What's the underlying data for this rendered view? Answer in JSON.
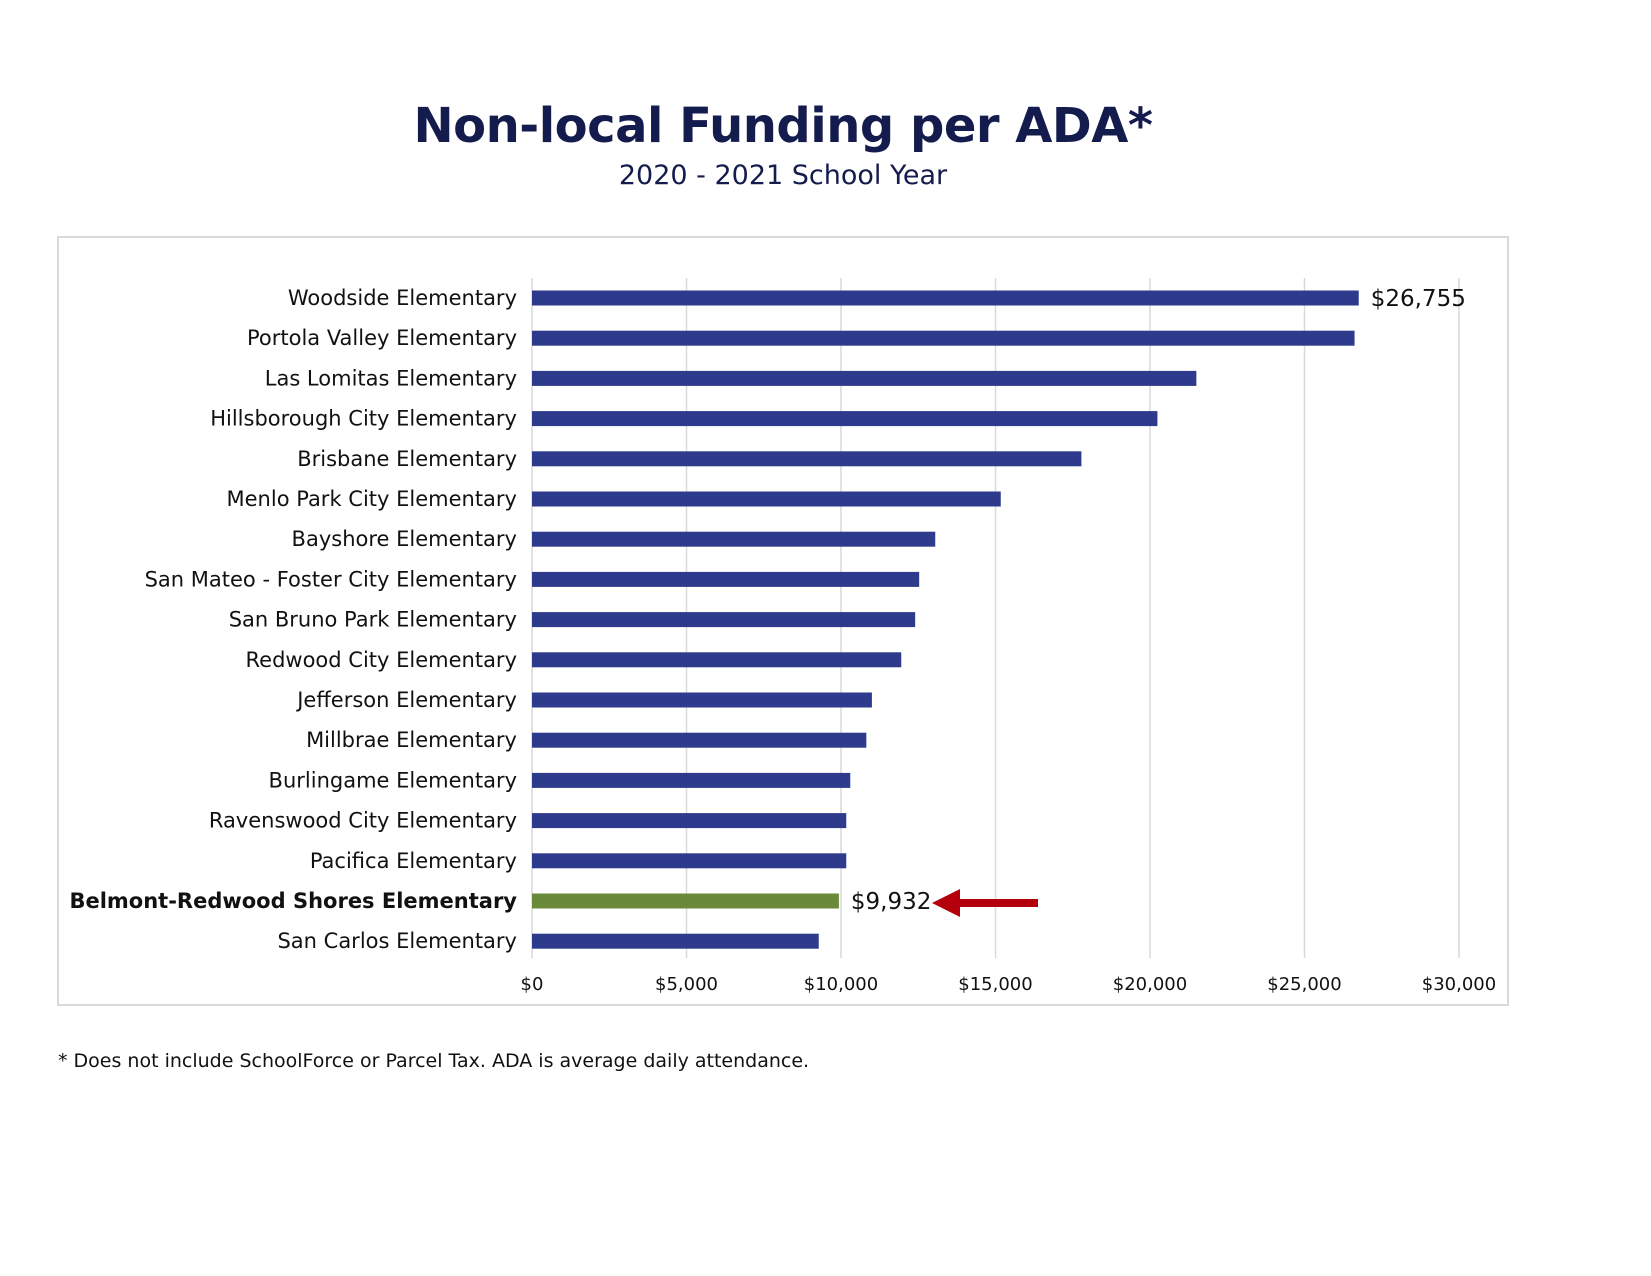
{
  "title": "Non-local Funding per ADA*",
  "subtitle": "2020 - 2021 School Year",
  "footnote": "* Does not include SchoolForce or Parcel Tax. ADA is average daily attendance.",
  "colors": {
    "bar": "#2e3a8c",
    "highlight": "#6a8a3a",
    "arrow": "#b3000c",
    "grid": "#d9d9d9"
  },
  "chart_data": {
    "type": "bar",
    "orientation": "horizontal",
    "categories": [
      "Woodside Elementary",
      "Portola Valley Elementary",
      "Las Lomitas Elementary",
      "Hillsborough City Elementary",
      "Brisbane Elementary",
      "Menlo Park City Elementary",
      "Bayshore Elementary",
      "San Mateo - Foster City Elementary",
      "San Bruno Park Elementary",
      "Redwood City Elementary",
      "Jefferson Elementary",
      "Millbrae Elementary",
      "Burlingame Elementary",
      "Ravenswood City Elementary",
      "Pacifica Elementary",
      "Belmont-Redwood Shores Elementary",
      "San Carlos Elementary"
    ],
    "values": [
      26755,
      26620,
      21500,
      20240,
      17780,
      15170,
      13050,
      12530,
      12400,
      11950,
      11000,
      10820,
      10300,
      10170,
      10170,
      9932,
      9280
    ],
    "highlight_category": "Belmont-Redwood Shores Elementary",
    "data_labels": [
      {
        "category": "Woodside Elementary",
        "text": "$26,755"
      },
      {
        "category": "Belmont-Redwood Shores Elementary",
        "text": "$9,932"
      }
    ],
    "xlim": [
      0,
      30000
    ],
    "x_ticks": [
      0,
      5000,
      10000,
      15000,
      20000,
      25000,
      30000
    ],
    "x_tick_labels": [
      "$0",
      "$5,000",
      "$10,000",
      "$15,000",
      "$20,000",
      "$25,000",
      "$30,000"
    ],
    "xlabel": "",
    "ylabel": "",
    "grid": "vertical",
    "annotations": [
      {
        "type": "arrow",
        "points_to": "Belmont-Redwood Shores Elementary"
      }
    ]
  }
}
